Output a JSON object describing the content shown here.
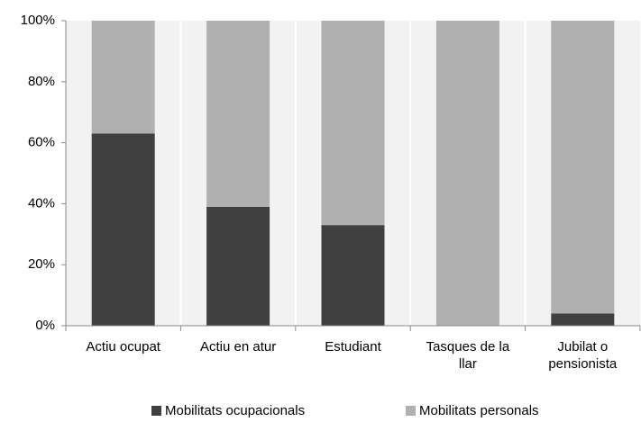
{
  "chart_data": {
    "type": "stacked_bar",
    "categories": [
      "Actiu ocupat",
      "Actiu en atur",
      "Estudiant",
      "Tasques de la llar",
      "Jubilat o pensionista"
    ],
    "series": [
      {
        "name": "Mobilitats ocupacionals",
        "color": "#404040",
        "values": [
          63,
          39,
          33,
          0,
          4
        ]
      },
      {
        "name": "Mobilitats personals",
        "color": "#b0b0b0",
        "values": [
          37,
          61,
          67,
          100,
          96
        ]
      }
    ],
    "ylim": [
      0,
      100
    ],
    "yticks": [
      {
        "value": 0,
        "label": "0%"
      },
      {
        "value": 20,
        "label": "20%"
      },
      {
        "value": 40,
        "label": "40%"
      },
      {
        "value": 60,
        "label": "60%"
      },
      {
        "value": 80,
        "label": "80%"
      },
      {
        "value": 100,
        "label": "100%"
      }
    ],
    "legend": "bottom"
  }
}
